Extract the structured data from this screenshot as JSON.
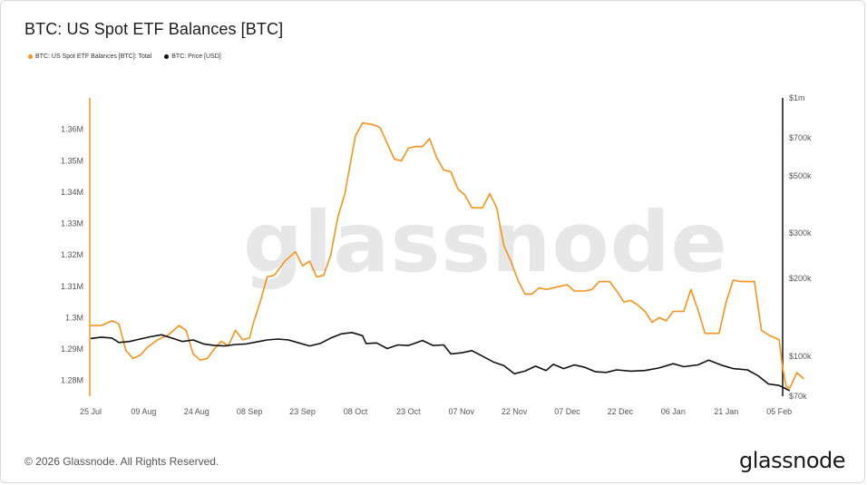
{
  "title": "BTC: US Spot ETF Balances [BTC]",
  "legend": [
    {
      "label": "BTC: US Spot ETF Balances [BTC]: Total",
      "color": "#f7931a"
    },
    {
      "label": "BTC: Price [USD]",
      "color": "#111111"
    }
  ],
  "watermark": "glassnode",
  "footer": {
    "copyright": "© 2026 Glassnode. All Rights Reserved.",
    "brand": "glassnode"
  },
  "chart_data": {
    "type": "line",
    "x_ticks": [
      "25 Jul",
      "09 Aug",
      "24 Aug",
      "08 Sep",
      "23 Sep",
      "08 Oct",
      "23 Oct",
      "07 Nov",
      "22 Nov",
      "07 Dec",
      "22 Dec",
      "06 Jan",
      "21 Jan",
      "05 Feb"
    ],
    "y_left": {
      "ticks": [
        "1.28M",
        "1.29M",
        "1.3M",
        "1.31M",
        "1.32M",
        "1.33M",
        "1.34M",
        "1.35M",
        "1.36M"
      ],
      "tick_values": [
        1280000,
        1290000,
        1300000,
        1310000,
        1320000,
        1330000,
        1340000,
        1350000,
        1360000
      ],
      "range": [
        1275000,
        1370000
      ]
    },
    "y_right": {
      "scale": "log",
      "ticks": [
        "$70k",
        "$100k",
        "$200k",
        "$300k",
        "$500k",
        "$700k",
        "$1m"
      ],
      "tick_values": [
        70000,
        100000,
        200000,
        300000,
        500000,
        700000,
        1000000
      ],
      "range": [
        70000,
        1000000
      ]
    },
    "x_range": [
      "2025-07-25",
      "2026-02-06"
    ],
    "series": [
      {
        "name": "BTC: US Spot ETF Balances [BTC]: Total",
        "color": "#f7931a",
        "axis": "left",
        "points": [
          [
            "2025-07-25",
            1297500
          ],
          [
            "2025-07-28",
            1297500
          ],
          [
            "2025-07-31",
            1299000
          ],
          [
            "2025-08-02",
            1298000
          ],
          [
            "2025-08-04",
            1289500
          ],
          [
            "2025-08-06",
            1287000
          ],
          [
            "2025-08-08",
            1288000
          ],
          [
            "2025-08-10",
            1290500
          ],
          [
            "2025-08-13",
            1293000
          ],
          [
            "2025-08-16",
            1294500
          ],
          [
            "2025-08-19",
            1297500
          ],
          [
            "2025-08-21",
            1296000
          ],
          [
            "2025-08-23",
            1288500
          ],
          [
            "2025-08-25",
            1286500
          ],
          [
            "2025-08-27",
            1287000
          ],
          [
            "2025-08-29",
            1290000
          ],
          [
            "2025-08-31",
            1292500
          ],
          [
            "2025-09-02",
            1291000
          ],
          [
            "2025-09-04",
            1296000
          ],
          [
            "2025-09-06",
            1293000
          ],
          [
            "2025-09-08",
            1293500
          ],
          [
            "2025-09-09",
            1298000
          ],
          [
            "2025-09-11",
            1305000
          ],
          [
            "2025-09-13",
            1313000
          ],
          [
            "2025-09-15",
            1313500
          ],
          [
            "2025-09-18",
            1318000
          ],
          [
            "2025-09-21",
            1321000
          ],
          [
            "2025-09-23",
            1316500
          ],
          [
            "2025-09-25",
            1318000
          ],
          [
            "2025-09-27",
            1313000
          ],
          [
            "2025-09-29",
            1313500
          ],
          [
            "2025-10-01",
            1320000
          ],
          [
            "2025-10-03",
            1332000
          ],
          [
            "2025-10-05",
            1339500
          ],
          [
            "2025-10-07",
            1352000
          ],
          [
            "2025-10-08",
            1358000
          ],
          [
            "2025-10-10",
            1362000
          ],
          [
            "2025-10-13",
            1361500
          ],
          [
            "2025-10-15",
            1360500
          ],
          [
            "2025-10-17",
            1355500
          ],
          [
            "2025-10-19",
            1350500
          ],
          [
            "2025-10-21",
            1350000
          ],
          [
            "2025-10-23",
            1354000
          ],
          [
            "2025-10-25",
            1354500
          ],
          [
            "2025-10-27",
            1354500
          ],
          [
            "2025-10-29",
            1357000
          ],
          [
            "2025-10-31",
            1351000
          ],
          [
            "2025-11-02",
            1347000
          ],
          [
            "2025-11-04",
            1346500
          ],
          [
            "2025-11-06",
            1341000
          ],
          [
            "2025-11-08",
            1339000
          ],
          [
            "2025-11-10",
            1335000
          ],
          [
            "2025-11-13",
            1335000
          ],
          [
            "2025-11-15",
            1339500
          ],
          [
            "2025-11-17",
            1335000
          ],
          [
            "2025-11-19",
            1323000
          ],
          [
            "2025-11-21",
            1318000
          ],
          [
            "2025-11-23",
            1312000
          ],
          [
            "2025-11-25",
            1307500
          ],
          [
            "2025-11-27",
            1307500
          ],
          [
            "2025-11-29",
            1309500
          ],
          [
            "2025-12-01",
            1309000
          ],
          [
            "2025-12-03",
            1309500
          ],
          [
            "2025-12-05",
            1310000
          ],
          [
            "2025-12-07",
            1310500
          ],
          [
            "2025-12-09",
            1308500
          ],
          [
            "2025-12-12",
            1308500
          ],
          [
            "2025-12-14",
            1309000
          ],
          [
            "2025-12-16",
            1311500
          ],
          [
            "2025-12-19",
            1311500
          ],
          [
            "2025-12-21",
            1308500
          ],
          [
            "2025-12-23",
            1305000
          ],
          [
            "2025-12-25",
            1305500
          ],
          [
            "2025-12-27",
            1304000
          ],
          [
            "2025-12-29",
            1302000
          ],
          [
            "2025-12-31",
            1298500
          ],
          [
            "2026-01-02",
            1300000
          ],
          [
            "2026-01-04",
            1299000
          ],
          [
            "2026-01-06",
            1302000
          ],
          [
            "2026-01-09",
            1302000
          ],
          [
            "2026-01-11",
            1309000
          ],
          [
            "2026-01-13",
            1302500
          ],
          [
            "2026-01-15",
            1295000
          ],
          [
            "2026-01-19",
            1295000
          ],
          [
            "2026-01-21",
            1305000
          ],
          [
            "2026-01-23",
            1312000
          ],
          [
            "2026-01-25",
            1311500
          ],
          [
            "2026-01-29",
            1311500
          ],
          [
            "2026-01-31",
            1296000
          ],
          [
            "2026-02-02",
            1294500
          ],
          [
            "2026-02-05",
            1293000
          ],
          [
            "2026-02-06",
            1284000
          ],
          [
            "2026-02-07",
            1278000
          ],
          [
            "2026-02-08",
            1277500
          ],
          [
            "2026-02-10",
            1282500
          ],
          [
            "2026-02-12",
            1280500
          ]
        ]
      },
      {
        "name": "BTC: Price [USD]",
        "color": "#111111",
        "axis": "right",
        "points": [
          [
            "2025-07-25",
            117000
          ],
          [
            "2025-07-28",
            118500
          ],
          [
            "2025-07-31",
            117500
          ],
          [
            "2025-08-02",
            113000
          ],
          [
            "2025-08-05",
            114000
          ],
          [
            "2025-08-08",
            116500
          ],
          [
            "2025-08-11",
            119000
          ],
          [
            "2025-08-14",
            121000
          ],
          [
            "2025-08-17",
            117500
          ],
          [
            "2025-08-20",
            114000
          ],
          [
            "2025-08-23",
            115500
          ],
          [
            "2025-08-26",
            111500
          ],
          [
            "2025-08-29",
            110000
          ],
          [
            "2025-09-01",
            109500
          ],
          [
            "2025-09-04",
            111000
          ],
          [
            "2025-09-07",
            111500
          ],
          [
            "2025-09-10",
            113500
          ],
          [
            "2025-09-13",
            115500
          ],
          [
            "2025-09-16",
            116500
          ],
          [
            "2025-09-19",
            115500
          ],
          [
            "2025-09-22",
            112500
          ],
          [
            "2025-09-25",
            109500
          ],
          [
            "2025-09-28",
            112000
          ],
          [
            "2025-10-01",
            117500
          ],
          [
            "2025-10-04",
            122000
          ],
          [
            "2025-10-07",
            123500
          ],
          [
            "2025-10-10",
            120000
          ],
          [
            "2025-10-11",
            112000
          ],
          [
            "2025-10-14",
            112500
          ],
          [
            "2025-10-17",
            107000
          ],
          [
            "2025-10-20",
            110500
          ],
          [
            "2025-10-23",
            110000
          ],
          [
            "2025-10-27",
            115000
          ],
          [
            "2025-10-30",
            110000
          ],
          [
            "2025-11-02",
            110500
          ],
          [
            "2025-11-04",
            102000
          ],
          [
            "2025-11-07",
            103000
          ],
          [
            "2025-11-10",
            105000
          ],
          [
            "2025-11-13",
            100000
          ],
          [
            "2025-11-16",
            95000
          ],
          [
            "2025-11-19",
            92000
          ],
          [
            "2025-11-22",
            85500
          ],
          [
            "2025-11-25",
            87500
          ],
          [
            "2025-11-28",
            91500
          ],
          [
            "2025-12-01",
            88000
          ],
          [
            "2025-12-03",
            93000
          ],
          [
            "2025-12-06",
            89500
          ],
          [
            "2025-12-09",
            92500
          ],
          [
            "2025-12-12",
            90500
          ],
          [
            "2025-12-15",
            87000
          ],
          [
            "2025-12-18",
            86500
          ],
          [
            "2025-12-21",
            88500
          ],
          [
            "2025-12-25",
            87500
          ],
          [
            "2025-12-29",
            88000
          ],
          [
            "2026-01-02",
            90000
          ],
          [
            "2026-01-06",
            93500
          ],
          [
            "2026-01-09",
            91000
          ],
          [
            "2026-01-13",
            92500
          ],
          [
            "2026-01-16",
            96500
          ],
          [
            "2026-01-20",
            92000
          ],
          [
            "2026-01-23",
            89500
          ],
          [
            "2026-01-27",
            88500
          ],
          [
            "2026-01-30",
            84000
          ],
          [
            "2026-02-02",
            78000
          ],
          [
            "2026-02-05",
            77000
          ],
          [
            "2026-02-08",
            73500
          ]
        ]
      }
    ]
  }
}
